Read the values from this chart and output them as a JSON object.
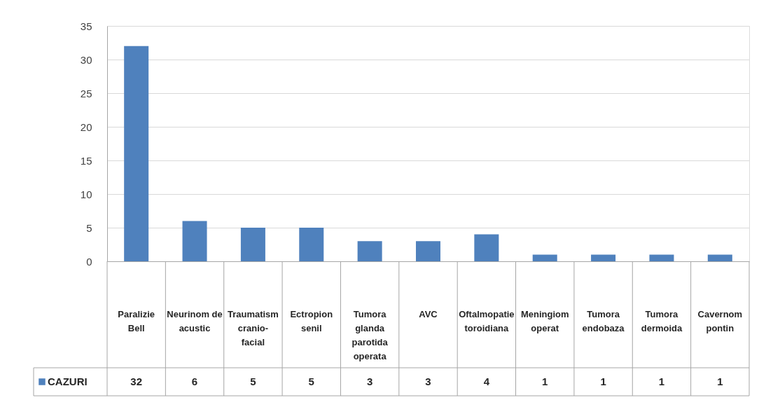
{
  "chart_data": {
    "type": "bar",
    "categories": [
      "Paralizie Bell",
      "Neurinom de acustic",
      "Traumatism cranio-facial",
      "Ectropion senil",
      "Tumora glanda parotida operata",
      "AVC",
      "Oftalmopatie toroidiana",
      "Meningiom operat",
      "Tumora endobaza",
      "Tumora dermoida",
      "Cavernom pontin"
    ],
    "series": [
      {
        "name": "CAZURI",
        "color": "#4f81bd",
        "values": [
          32,
          6,
          5,
          5,
          3,
          3,
          4,
          1,
          1,
          1,
          1
        ]
      }
    ],
    "ylim": [
      0,
      35
    ],
    "yticks": [
      0,
      5,
      10,
      15,
      20,
      25,
      30,
      35
    ],
    "grid": "y",
    "data_labels": true,
    "legend": "bottom left"
  }
}
